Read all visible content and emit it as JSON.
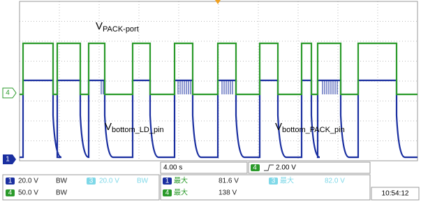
{
  "waveform_labels": [
    {
      "main": "V",
      "sub": "PACK-port"
    },
    {
      "main": "V",
      "sub": "bottom_LD_pin"
    },
    {
      "main": "V",
      "sub": "bottom_PACK_pin"
    }
  ],
  "channel_markers": {
    "ch4": "4",
    "ch1": "1"
  },
  "timebase": "4.00 s",
  "trigger": {
    "channel": "4",
    "level": "2.00 V"
  },
  "vertical": [
    {
      "channel": "1",
      "scale": "20.0 V",
      "bw": "BW"
    },
    {
      "channel": "3",
      "scale": "20.0 V",
      "bw": "BW"
    },
    {
      "channel": "4",
      "scale": "50.0 V",
      "bw": "BW"
    }
  ],
  "measurements": [
    {
      "channel": "1",
      "label": "最大",
      "value": "81.6 V"
    },
    {
      "channel": "4",
      "label": "最大",
      "value": "138 V"
    },
    {
      "channel": "3",
      "label": "最大",
      "value": "82.0 V"
    }
  ],
  "time": "10:54:12"
}
